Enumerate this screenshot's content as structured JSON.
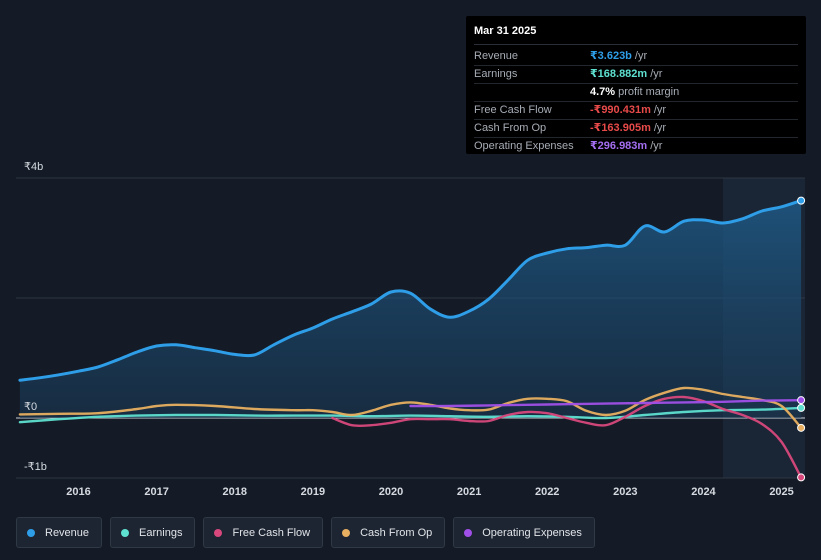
{
  "tooltip": {
    "date": "Mar 31 2025",
    "rows": [
      {
        "label": "Revenue",
        "value": "₹3.623b",
        "unit": "/yr",
        "color": "#2f9ee8"
      },
      {
        "label": "Earnings",
        "value": "₹168.882m",
        "unit": "/yr",
        "color": "#5ee0d0"
      },
      {
        "label": "",
        "value": "4.7%",
        "unit": "profit margin",
        "color": "#ffffff"
      },
      {
        "label": "Free Cash Flow",
        "value": "-₹990.431m",
        "unit": "/yr",
        "color": "#e84a4a"
      },
      {
        "label": "Cash From Op",
        "value": "-₹163.905m",
        "unit": "/yr",
        "color": "#e84a4a"
      },
      {
        "label": "Operating Expenses",
        "value": "₹296.983m",
        "unit": "/yr",
        "color": "#a46ef0"
      }
    ]
  },
  "legend": [
    {
      "label": "Revenue",
      "color": "#2f9ee8"
    },
    {
      "label": "Earnings",
      "color": "#5ee0d0"
    },
    {
      "label": "Free Cash Flow",
      "color": "#d8487c"
    },
    {
      "label": "Cash From Op",
      "color": "#e8b060"
    },
    {
      "label": "Operating Expenses",
      "color": "#a050e8"
    }
  ],
  "chart_data": {
    "type": "area",
    "title": "",
    "y_unit": "₹b",
    "ylim": [
      -1,
      4
    ],
    "y_tick_labels": [
      {
        "value": 4,
        "label": "₹4b"
      },
      {
        "value": 0,
        "label": "₹0"
      },
      {
        "value": -1,
        "label": "-₹1b"
      }
    ],
    "xlim": [
      2015.2,
      2025.3
    ],
    "x_ticks": [
      2016,
      2017,
      2018,
      2019,
      2020,
      2021,
      2022,
      2023,
      2024,
      2025
    ],
    "x_tick_labels": [
      "2016",
      "2017",
      "2018",
      "2019",
      "2020",
      "2021",
      "2022",
      "2023",
      "2024",
      "2025"
    ],
    "highlight_from": 2024.25,
    "series": [
      {
        "name": "Revenue",
        "color": "#2f9ee8",
        "fill": true,
        "x": [
          2015.25,
          2015.5,
          2015.75,
          2016.0,
          2016.25,
          2016.5,
          2016.75,
          2017.0,
          2017.25,
          2017.5,
          2017.75,
          2018.0,
          2018.25,
          2018.5,
          2018.75,
          2019.0,
          2019.25,
          2019.5,
          2019.75,
          2020.0,
          2020.25,
          2020.5,
          2020.75,
          2021.0,
          2021.25,
          2021.5,
          2021.75,
          2022.0,
          2022.25,
          2022.5,
          2022.75,
          2023.0,
          2023.25,
          2023.5,
          2023.75,
          2024.0,
          2024.25,
          2024.5,
          2024.75,
          2025.0,
          2025.25
        ],
        "values": [
          0.63,
          0.67,
          0.72,
          0.78,
          0.85,
          0.97,
          1.1,
          1.2,
          1.22,
          1.17,
          1.12,
          1.06,
          1.05,
          1.22,
          1.38,
          1.5,
          1.65,
          1.77,
          1.9,
          2.1,
          2.08,
          1.82,
          1.68,
          1.78,
          1.98,
          2.3,
          2.63,
          2.75,
          2.82,
          2.84,
          2.88,
          2.88,
          3.2,
          3.1,
          3.28,
          3.3,
          3.25,
          3.32,
          3.45,
          3.52,
          3.623
        ]
      },
      {
        "name": "Earnings",
        "color": "#5ee0d0",
        "fill": false,
        "x": [
          2015.25,
          2015.75,
          2016.25,
          2016.75,
          2017.25,
          2017.75,
          2018.25,
          2018.75,
          2019.25,
          2019.75,
          2020.25,
          2020.75,
          2021.25,
          2021.75,
          2022.25,
          2022.75,
          2023.25,
          2023.75,
          2024.25,
          2024.75,
          2025.25
        ],
        "values": [
          -0.07,
          -0.02,
          0.02,
          0.04,
          0.05,
          0.05,
          0.04,
          0.04,
          0.04,
          0.03,
          0.04,
          0.03,
          0.02,
          0.03,
          0.02,
          0.0,
          0.05,
          0.1,
          0.13,
          0.14,
          0.169
        ]
      },
      {
        "name": "Free Cash Flow",
        "color": "#d8487c",
        "fill": false,
        "x": [
          2019.25,
          2019.5,
          2019.75,
          2020.0,
          2020.25,
          2020.5,
          2020.75,
          2021.0,
          2021.25,
          2021.5,
          2021.75,
          2022.0,
          2022.25,
          2022.5,
          2022.75,
          2023.0,
          2023.25,
          2023.5,
          2023.75,
          2024.0,
          2024.25,
          2024.5,
          2024.75,
          2025.0,
          2025.25
        ],
        "values": [
          0.0,
          -0.12,
          -0.12,
          -0.08,
          -0.02,
          -0.02,
          -0.02,
          -0.05,
          -0.05,
          0.05,
          0.1,
          0.08,
          0.0,
          -0.08,
          -0.12,
          0.02,
          0.2,
          0.32,
          0.35,
          0.28,
          0.15,
          0.05,
          -0.1,
          -0.4,
          -0.99
        ]
      },
      {
        "name": "Cash From Op",
        "color": "#e8b060",
        "fill": false,
        "x": [
          2015.25,
          2015.75,
          2016.25,
          2016.75,
          2017.0,
          2017.25,
          2017.75,
          2018.25,
          2018.75,
          2019.0,
          2019.25,
          2019.5,
          2019.75,
          2020.0,
          2020.25,
          2020.5,
          2020.75,
          2021.0,
          2021.25,
          2021.5,
          2021.75,
          2022.0,
          2022.25,
          2022.5,
          2022.75,
          2023.0,
          2023.25,
          2023.5,
          2023.75,
          2024.0,
          2024.25,
          2024.5,
          2024.75,
          2025.0,
          2025.25
        ],
        "values": [
          0.06,
          0.07,
          0.08,
          0.15,
          0.2,
          0.22,
          0.2,
          0.15,
          0.13,
          0.13,
          0.1,
          0.05,
          0.12,
          0.22,
          0.26,
          0.22,
          0.16,
          0.13,
          0.14,
          0.25,
          0.32,
          0.32,
          0.28,
          0.12,
          0.05,
          0.12,
          0.3,
          0.42,
          0.5,
          0.47,
          0.4,
          0.35,
          0.3,
          0.2,
          -0.164
        ]
      },
      {
        "name": "Operating Expenses",
        "color": "#a050e8",
        "fill": false,
        "x": [
          2020.25,
          2020.75,
          2021.25,
          2021.75,
          2022.25,
          2022.75,
          2023.25,
          2023.75,
          2024.25,
          2024.75,
          2025.25
        ],
        "values": [
          0.2,
          0.2,
          0.21,
          0.22,
          0.23,
          0.24,
          0.25,
          0.26,
          0.27,
          0.29,
          0.297
        ]
      }
    ]
  }
}
